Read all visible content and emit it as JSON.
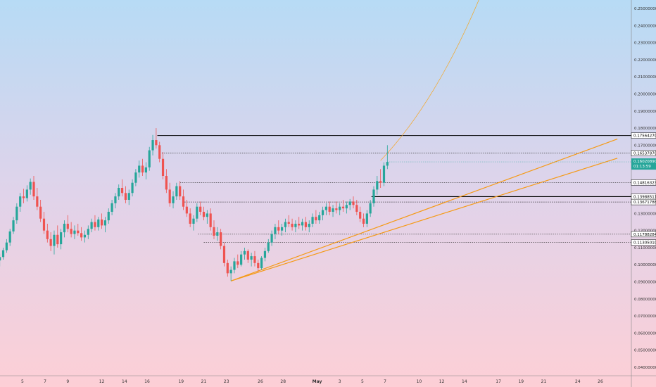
{
  "chart_data": {
    "type": "candlestick",
    "title": "",
    "xlabel": "",
    "ylabel": "",
    "ylim": [
      0.035,
      0.255
    ],
    "y_ticks": [
      "0.25000000",
      "0.24000000",
      "0.23000000",
      "0.22000000",
      "0.21000000",
      "0.20000000",
      "0.19000000",
      "0.18000000",
      "0.17000000",
      "0.13000000",
      "0.12000000",
      "0.11000000",
      "0.10000000",
      "0.09000000",
      "0.08000000",
      "0.07000000",
      "0.06000000",
      "0.05000000",
      "0.04000000"
    ],
    "x_ticks": [
      {
        "label": "5",
        "day": 5
      },
      {
        "label": "7",
        "day": 7
      },
      {
        "label": "9",
        "day": 9
      },
      {
        "label": "12",
        "day": 12
      },
      {
        "label": "14",
        "day": 14
      },
      {
        "label": "16",
        "day": 16
      },
      {
        "label": "19",
        "day": 19
      },
      {
        "label": "21",
        "day": 21
      },
      {
        "label": "23",
        "day": 23
      },
      {
        "label": "26",
        "day": 26
      },
      {
        "label": "28",
        "day": 28
      },
      {
        "label": "May",
        "day": 31,
        "bold": true
      },
      {
        "label": "3",
        "day": 33
      },
      {
        "label": "5",
        "day": 35
      },
      {
        "label": "7",
        "day": 37
      },
      {
        "label": "10",
        "day": 40
      },
      {
        "label": "12",
        "day": 42
      },
      {
        "label": "14",
        "day": 44
      },
      {
        "label": "17",
        "day": 47
      },
      {
        "label": "19",
        "day": 49
      },
      {
        "label": "21",
        "day": 51
      },
      {
        "label": "24",
        "day": 54
      },
      {
        "label": "26",
        "day": 56
      }
    ],
    "levels": [
      {
        "label": "0.17564270",
        "value": 0.1756427,
        "style": "solid",
        "from_day": 16.9
      },
      {
        "label": "0.16537870",
        "value": 0.1653787,
        "style": "dotted",
        "from_day": 17.3
      },
      {
        "label": "0.14816323",
        "value": 0.14816323,
        "style": "dotted",
        "from_day": 18.9
      },
      {
        "label": "0.13988511",
        "value": 0.13988511,
        "style": "solid",
        "from_day": 35.8
      },
      {
        "label": "0.13671788",
        "value": 0.13671788,
        "style": "dotted",
        "from_day": 19.3
      },
      {
        "label": "0.11788284",
        "value": 0.11788284,
        "style": "dotted",
        "from_day": 20.5
      },
      {
        "label": "0.11305010",
        "value": 0.1130501,
        "style": "dotted",
        "from_day": 21.0
      }
    ],
    "current_price": {
      "price": "0.16020890",
      "countdown": "01:13:59",
      "value": 0.1602089,
      "color": "#26a69a"
    },
    "trendlines": [
      {
        "from": [
          23.4,
          0.0905
        ],
        "to": [
          57.5,
          0.1736
        ],
        "width": 1.2
      },
      {
        "from": [
          23.4,
          0.0905
        ],
        "to": [
          57.5,
          0.1624
        ],
        "width": 1.2
      }
    ],
    "projection": {
      "from_day": 36.6,
      "from_value": 0.161,
      "to_day": 45.4,
      "to_value": 0.257
    },
    "ohlc": [
      [
        3.0,
        0.1025,
        0.1065,
        0.099,
        0.1045
      ],
      [
        3.3,
        0.1045,
        0.11,
        0.103,
        0.1085
      ],
      [
        3.6,
        0.1085,
        0.115,
        0.107,
        0.113
      ],
      [
        3.9,
        0.113,
        0.121,
        0.111,
        0.1195
      ],
      [
        4.2,
        0.1195,
        0.128,
        0.118,
        0.126
      ],
      [
        4.5,
        0.126,
        0.136,
        0.124,
        0.134
      ],
      [
        4.8,
        0.134,
        0.142,
        0.131,
        0.14
      ],
      [
        5.1,
        0.14,
        0.1445,
        0.136,
        0.139
      ],
      [
        5.4,
        0.139,
        0.1465,
        0.137,
        0.144
      ],
      [
        5.7,
        0.144,
        0.1505,
        0.141,
        0.1485
      ],
      [
        6.0,
        0.1485,
        0.152,
        0.138,
        0.14
      ],
      [
        6.3,
        0.14,
        0.145,
        0.132,
        0.134
      ],
      [
        6.6,
        0.134,
        0.138,
        0.125,
        0.127
      ],
      [
        6.9,
        0.127,
        0.131,
        0.118,
        0.12
      ],
      [
        7.2,
        0.12,
        0.124,
        0.113,
        0.115
      ],
      [
        7.5,
        0.115,
        0.119,
        0.108,
        0.111
      ],
      [
        7.8,
        0.111,
        0.12,
        0.106,
        0.1175
      ],
      [
        8.1,
        0.1175,
        0.123,
        0.11,
        0.112
      ],
      [
        8.4,
        0.112,
        0.121,
        0.109,
        0.119
      ],
      [
        8.7,
        0.119,
        0.126,
        0.116,
        0.124
      ],
      [
        9.0,
        0.124,
        0.129,
        0.119,
        0.121
      ],
      [
        9.3,
        0.121,
        0.125,
        0.116,
        0.118
      ],
      [
        9.6,
        0.118,
        0.123,
        0.115,
        0.12
      ],
      [
        9.9,
        0.12,
        0.124,
        0.117,
        0.1185
      ],
      [
        10.2,
        0.1185,
        0.122,
        0.114,
        0.116
      ],
      [
        10.5,
        0.116,
        0.12,
        0.113,
        0.1175
      ],
      [
        10.8,
        0.1175,
        0.123,
        0.115,
        0.121
      ],
      [
        11.1,
        0.121,
        0.127,
        0.119,
        0.125
      ],
      [
        11.4,
        0.125,
        0.129,
        0.12,
        0.122
      ],
      [
        11.7,
        0.122,
        0.128,
        0.12,
        0.1265
      ],
      [
        12.0,
        0.1265,
        0.13,
        0.121,
        0.123
      ],
      [
        12.3,
        0.123,
        0.128,
        0.119,
        0.126
      ],
      [
        12.6,
        0.126,
        0.133,
        0.124,
        0.131
      ],
      [
        12.9,
        0.131,
        0.138,
        0.129,
        0.136
      ],
      [
        13.2,
        0.136,
        0.142,
        0.133,
        0.14
      ],
      [
        13.5,
        0.14,
        0.147,
        0.138,
        0.145
      ],
      [
        13.8,
        0.145,
        0.15,
        0.14,
        0.142
      ],
      [
        14.1,
        0.142,
        0.146,
        0.136,
        0.138
      ],
      [
        14.4,
        0.138,
        0.144,
        0.135,
        0.142
      ],
      [
        14.7,
        0.142,
        0.15,
        0.14,
        0.148
      ],
      [
        15.0,
        0.148,
        0.156,
        0.146,
        0.154
      ],
      [
        15.3,
        0.154,
        0.161,
        0.151,
        0.158
      ],
      [
        15.6,
        0.158,
        0.162,
        0.152,
        0.154
      ],
      [
        15.9,
        0.154,
        0.16,
        0.15,
        0.157
      ],
      [
        16.2,
        0.157,
        0.169,
        0.155,
        0.167
      ],
      [
        16.5,
        0.167,
        0.176,
        0.164,
        0.173
      ],
      [
        16.8,
        0.173,
        0.18,
        0.168,
        0.17
      ],
      [
        17.1,
        0.17,
        0.172,
        0.16,
        0.162
      ],
      [
        17.4,
        0.162,
        0.166,
        0.15,
        0.152
      ],
      [
        17.7,
        0.152,
        0.156,
        0.142,
        0.144
      ],
      [
        18.0,
        0.144,
        0.148,
        0.134,
        0.136
      ],
      [
        18.3,
        0.136,
        0.143,
        0.133,
        0.14
      ],
      [
        18.6,
        0.14,
        0.148,
        0.138,
        0.146
      ],
      [
        18.9,
        0.146,
        0.149,
        0.138,
        0.14
      ],
      [
        19.2,
        0.14,
        0.144,
        0.132,
        0.134
      ],
      [
        19.5,
        0.134,
        0.138,
        0.128,
        0.13
      ],
      [
        19.8,
        0.13,
        0.133,
        0.122,
        0.124
      ],
      [
        20.1,
        0.124,
        0.129,
        0.12,
        0.127
      ],
      [
        20.4,
        0.127,
        0.136,
        0.125,
        0.134
      ],
      [
        20.7,
        0.134,
        0.137,
        0.129,
        0.131
      ],
      [
        21.0,
        0.131,
        0.134,
        0.126,
        0.128
      ],
      [
        21.3,
        0.128,
        0.132,
        0.124,
        0.13
      ],
      [
        21.6,
        0.13,
        0.133,
        0.12,
        0.122
      ],
      [
        21.9,
        0.122,
        0.126,
        0.115,
        0.117
      ],
      [
        22.2,
        0.117,
        0.122,
        0.114,
        0.119
      ],
      [
        22.5,
        0.119,
        0.121,
        0.109,
        0.111
      ],
      [
        22.8,
        0.111,
        0.113,
        0.099,
        0.101
      ],
      [
        23.1,
        0.101,
        0.103,
        0.093,
        0.095
      ],
      [
        23.4,
        0.095,
        0.099,
        0.0905,
        0.097
      ],
      [
        23.7,
        0.097,
        0.104,
        0.095,
        0.102
      ],
      [
        24.0,
        0.102,
        0.106,
        0.098,
        0.1
      ],
      [
        24.3,
        0.1,
        0.108,
        0.099,
        0.106
      ],
      [
        24.6,
        0.106,
        0.11,
        0.103,
        0.108
      ],
      [
        24.9,
        0.108,
        0.109,
        0.101,
        0.103
      ],
      [
        25.2,
        0.103,
        0.107,
        0.099,
        0.105
      ],
      [
        25.5,
        0.105,
        0.108,
        0.099,
        0.101
      ],
      [
        25.8,
        0.101,
        0.103,
        0.096,
        0.098
      ],
      [
        26.1,
        0.098,
        0.105,
        0.097,
        0.104
      ],
      [
        26.4,
        0.104,
        0.11,
        0.102,
        0.108
      ],
      [
        26.7,
        0.108,
        0.115,
        0.107,
        0.113
      ],
      [
        27.0,
        0.113,
        0.12,
        0.111,
        0.118
      ],
      [
        27.3,
        0.118,
        0.124,
        0.115,
        0.122
      ],
      [
        27.6,
        0.122,
        0.126,
        0.118,
        0.12
      ],
      [
        27.9,
        0.12,
        0.124,
        0.117,
        0.122
      ],
      [
        28.2,
        0.122,
        0.127,
        0.119,
        0.125
      ],
      [
        28.5,
        0.125,
        0.129,
        0.122,
        0.124
      ],
      [
        28.8,
        0.124,
        0.127,
        0.12,
        0.122
      ],
      [
        29.1,
        0.122,
        0.126,
        0.119,
        0.124
      ],
      [
        29.4,
        0.124,
        0.128,
        0.121,
        0.123
      ],
      [
        29.7,
        0.123,
        0.127,
        0.12,
        0.125
      ],
      [
        30.0,
        0.125,
        0.128,
        0.12,
        0.122
      ],
      [
        30.3,
        0.122,
        0.126,
        0.119,
        0.124
      ],
      [
        30.6,
        0.124,
        0.13,
        0.122,
        0.128
      ],
      [
        30.9,
        0.128,
        0.132,
        0.124,
        0.126
      ],
      [
        31.2,
        0.126,
        0.131,
        0.124,
        0.129
      ],
      [
        31.5,
        0.129,
        0.134,
        0.126,
        0.132
      ],
      [
        31.8,
        0.132,
        0.136,
        0.129,
        0.134
      ],
      [
        32.1,
        0.134,
        0.137,
        0.129,
        0.131
      ],
      [
        32.4,
        0.131,
        0.135,
        0.128,
        0.133
      ],
      [
        32.7,
        0.133,
        0.137,
        0.13,
        0.132
      ],
      [
        33.0,
        0.132,
        0.136,
        0.129,
        0.134
      ],
      [
        33.3,
        0.134,
        0.138,
        0.131,
        0.133
      ],
      [
        33.6,
        0.133,
        0.137,
        0.13,
        0.135
      ],
      [
        33.9,
        0.135,
        0.1385,
        0.132,
        0.137
      ],
      [
        34.2,
        0.137,
        0.14,
        0.133,
        0.135
      ],
      [
        34.5,
        0.135,
        0.138,
        0.129,
        0.131
      ],
      [
        34.8,
        0.131,
        0.134,
        0.125,
        0.127
      ],
      [
        35.1,
        0.127,
        0.13,
        0.122,
        0.124
      ],
      [
        35.4,
        0.124,
        0.132,
        0.122,
        0.13
      ],
      [
        35.7,
        0.13,
        0.138,
        0.128,
        0.136
      ],
      [
        36.0,
        0.136,
        0.146,
        0.134,
        0.144
      ],
      [
        36.3,
        0.144,
        0.152,
        0.141,
        0.149
      ],
      [
        36.6,
        0.149,
        0.156,
        0.145,
        0.148
      ],
      [
        36.9,
        0.148,
        0.16,
        0.146,
        0.158
      ],
      [
        37.2,
        0.158,
        0.17,
        0.156,
        0.1602
      ]
    ]
  }
}
